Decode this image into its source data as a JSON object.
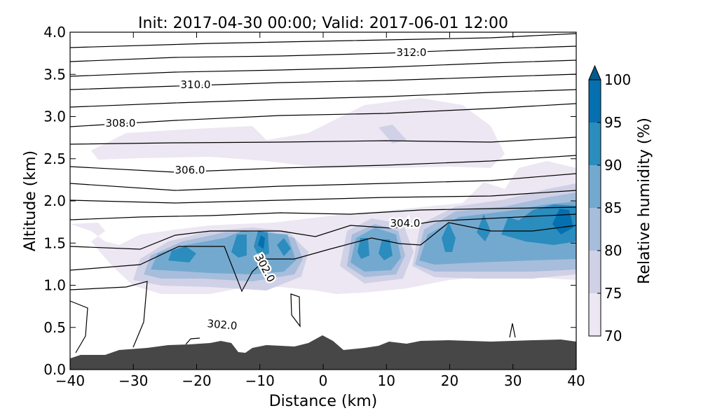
{
  "chart_data": {
    "type": "contour",
    "title": "Init: 2017-04-30 00:00; Valid: 2017-06-01 12:00",
    "xlabel": "Distance (km)",
    "ylabel": "Altitude (km)",
    "xlim": [
      -40,
      40
    ],
    "xticks": [
      {
        "value": -40,
        "label": "−40"
      },
      {
        "value": -30,
        "label": "−30"
      },
      {
        "value": -20,
        "label": "−20"
      },
      {
        "value": -10,
        "label": "−10"
      },
      0,
      10,
      20,
      30,
      40
    ],
    "ylim": [
      0,
      4
    ],
    "yticks": [
      {
        "value": 0,
        "label": "0.0"
      },
      0.5,
      {
        "value": 1,
        "label": "1.0"
      },
      1.5,
      {
        "value": 2,
        "label": "2.0"
      },
      2.5,
      {
        "value": 3,
        "label": "3.0"
      },
      3.5,
      {
        "value": 4,
        "label": "4.0"
      }
    ],
    "colorbar": {
      "label": "Relative humidity (%)",
      "levels": [
        70,
        75,
        80,
        85,
        90,
        95,
        100
      ],
      "colors": [
        "#ece7f2",
        "#d0d1e6",
        "#a6bddb",
        "#74a9cf",
        "#2b8cbe",
        "#0570b0"
      ],
      "extend_color": "#045a8d"
    },
    "contour_labels": [
      "312.0",
      "310.0",
      "308.0",
      "306.0",
      "304.0",
      "302.0",
      "302.0"
    ]
  }
}
